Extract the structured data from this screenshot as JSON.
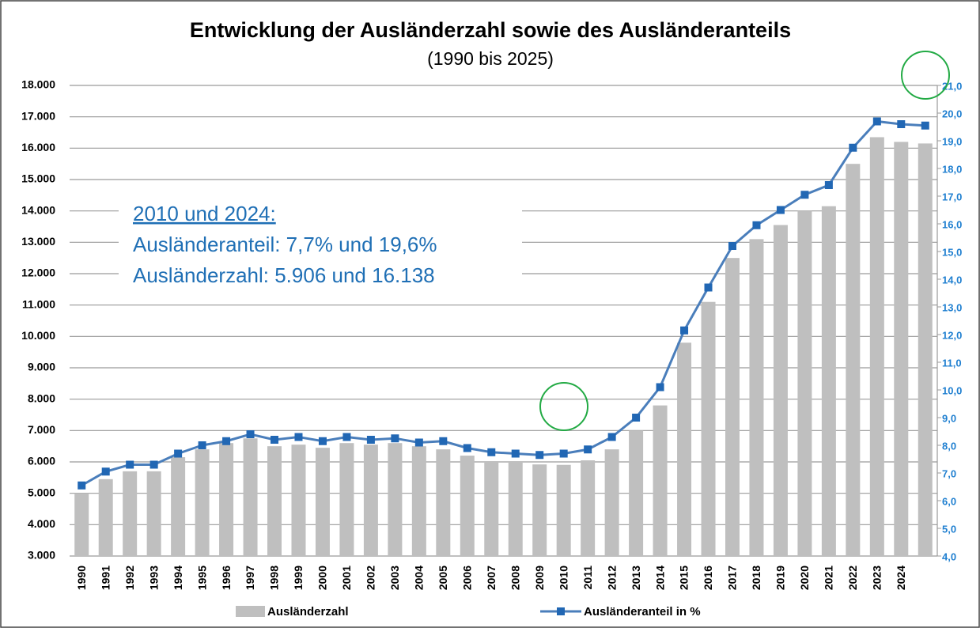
{
  "chart_data": {
    "type": "bar",
    "title": "Entwicklung der Ausländerzahl  sowie des Ausländeranteils",
    "subtitle": "(1990 bis 2025)",
    "annotations": [
      "2010 und 2024:",
      "Ausländeranteil:  7,7% und 19,6%",
      "Ausländerzahl:  5.906 und 16.138"
    ],
    "categories": [
      "1990",
      "1991",
      "1992",
      "1993",
      "1994",
      "1995",
      "1996",
      "1997",
      "1998",
      "1999",
      "2000",
      "2001",
      "2002",
      "2003",
      "2004",
      "2005",
      "2006",
      "2007",
      "2008",
      "2009",
      "2010",
      "2011",
      "2012",
      "2013",
      "2014",
      "2015",
      "2016",
      "2017",
      "2018",
      "2019",
      "2020",
      "2021",
      "2022",
      "2023",
      "2024",
      null
    ],
    "series": [
      {
        "name": "Ausländerzahl",
        "type": "bar",
        "axis": "y",
        "color": "#bfbfbf",
        "values": [
          5000,
          5450,
          5700,
          5700,
          6150,
          6400,
          6600,
          6750,
          6500,
          6550,
          6450,
          6600,
          6550,
          6600,
          6500,
          6400,
          6200,
          6000,
          6000,
          5920,
          5906,
          6050,
          6400,
          7000,
          7800,
          9800,
          11100,
          12500,
          13100,
          13550,
          14000,
          14150,
          15500,
          16350,
          16200,
          16150
        ]
      },
      {
        "name": "Ausländeranteil in %",
        "type": "line",
        "axis": "y2",
        "color": "#4a7ebb",
        "marker_color": "#2167b4",
        "values": [
          6.55,
          7.05,
          7.3,
          7.3,
          7.7,
          8.0,
          8.15,
          8.4,
          8.2,
          8.3,
          8.15,
          8.3,
          8.2,
          8.25,
          8.1,
          8.15,
          7.9,
          7.75,
          7.7,
          7.65,
          7.7,
          7.85,
          8.3,
          9.0,
          10.1,
          12.15,
          13.7,
          15.2,
          15.95,
          16.5,
          17.05,
          17.4,
          18.75,
          19.7,
          19.6,
          19.55
        ]
      }
    ],
    "ylim": [
      3000,
      18000
    ],
    "yticks": [
      {
        "value": 3000,
        "label": "3.000"
      },
      {
        "value": 4000,
        "label": "4.000"
      },
      {
        "value": 5000,
        "label": "5.000"
      },
      {
        "value": 6000,
        "label": "6.000"
      },
      {
        "value": 7000,
        "label": "7.000"
      },
      {
        "value": 8000,
        "label": "8.000"
      },
      {
        "value": 9000,
        "label": "9.000"
      },
      {
        "value": 10000,
        "label": "10.000"
      },
      {
        "value": 11000,
        "label": "11.000"
      },
      {
        "value": 12000,
        "label": "12.000"
      },
      {
        "value": 13000,
        "label": "13.000"
      },
      {
        "value": 14000,
        "label": "14.000"
      },
      {
        "value": 15000,
        "label": "15.000"
      },
      {
        "value": 16000,
        "label": "16.000"
      },
      {
        "value": 17000,
        "label": "17.000"
      },
      {
        "value": 18000,
        "label": "18.000"
      }
    ],
    "y2lim": [
      4,
      21
    ],
    "y2ticks": [
      {
        "value": 4,
        "label": "4,0"
      },
      {
        "value": 5,
        "label": "5,0"
      },
      {
        "value": 6,
        "label": "6,0"
      },
      {
        "value": 7,
        "label": "7,0"
      },
      {
        "value": 8,
        "label": "8,0"
      },
      {
        "value": 9,
        "label": "9,0"
      },
      {
        "value": 10,
        "label": "10,0"
      },
      {
        "value": 11,
        "label": "11,0"
      },
      {
        "value": 12,
        "label": "12,0"
      },
      {
        "value": 13,
        "label": "13,0"
      },
      {
        "value": 14,
        "label": "14,0"
      },
      {
        "value": 15,
        "label": "15,0"
      },
      {
        "value": 16,
        "label": "16,0"
      },
      {
        "value": 17,
        "label": "17,0"
      },
      {
        "value": 18,
        "label": "18,0"
      },
      {
        "value": 19,
        "label": "19,0"
      },
      {
        "value": 20,
        "label": "20,0"
      },
      {
        "value": 21,
        "label": "21,0"
      }
    ],
    "grid": true,
    "legend": "bottom"
  }
}
